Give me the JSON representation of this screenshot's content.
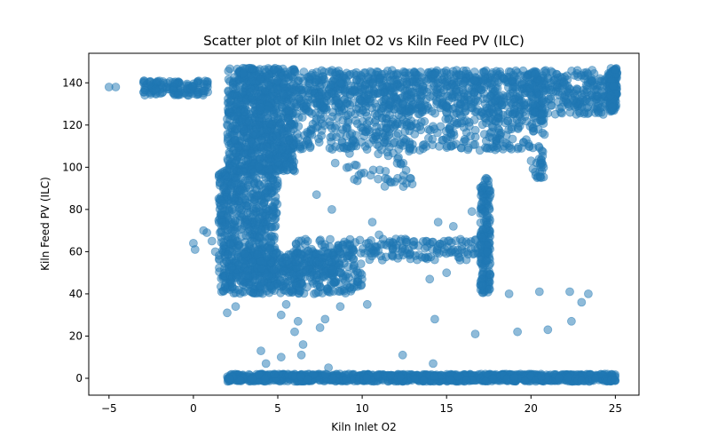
{
  "chart_data": {
    "type": "scatter",
    "title": "Scatter plot of Kiln Inlet O2 vs Kiln Feed PV (ILC)",
    "xlabel": "Kiln Inlet O2",
    "ylabel": "Kiln Feed PV (ILC)",
    "xlim": [
      -6.2,
      26.4
    ],
    "ylim": [
      -8,
      154
    ],
    "xticks": [
      -5,
      0,
      5,
      10,
      15,
      20,
      25
    ],
    "yticks": [
      0,
      20,
      40,
      60,
      80,
      100,
      120,
      140
    ],
    "grid": false,
    "legend": "none",
    "marker_color": "#1f77b4",
    "marker_alpha": 0.5,
    "regions": [
      {
        "x": [
          2.0,
          6.0
        ],
        "y": [
          98,
          147
        ],
        "n": 900
      },
      {
        "x": [
          1.5,
          5.0
        ],
        "y": [
          40,
          100
        ],
        "n": 700
      },
      {
        "x": [
          6.0,
          25.0
        ],
        "y": [
          125,
          146
        ],
        "n": 1100
      },
      {
        "x": [
          6.0,
          20.0
        ],
        "y": [
          108,
          125
        ],
        "n": 300
      },
      {
        "x": [
          6.0,
          17.5
        ],
        "y": [
          56,
          66
        ],
        "n": 220
      },
      {
        "x": [
          5.0,
          10.0
        ],
        "y": [
          40,
          55
        ],
        "n": 180
      },
      {
        "x": [
          17.0,
          17.6
        ],
        "y": [
          40,
          95
        ],
        "n": 180
      },
      {
        "x": [
          20.0,
          20.8
        ],
        "y": [
          95,
          145
        ],
        "n": 80
      },
      {
        "x": [
          24.6,
          25.1
        ],
        "y": [
          126,
          147
        ],
        "n": 120
      },
      {
        "x": [
          -3.0,
          0.9
        ],
        "y": [
          134,
          141
        ],
        "n": 140
      },
      {
        "x": [
          2.0,
          25.0
        ],
        "y": [
          -1.5,
          2.0
        ],
        "n": 1300
      },
      {
        "x": [
          9.0,
          13.0
        ],
        "y": [
          90,
          130
        ],
        "n": 80
      },
      {
        "x": [
          2.0,
          8.5
        ],
        "y": [
          48,
          60
        ],
        "n": 200
      }
    ],
    "points": [
      [
        -5.0,
        138
      ],
      [
        -4.6,
        138
      ],
      [
        0.0,
        64
      ],
      [
        0.1,
        61
      ],
      [
        0.6,
        70
      ],
      [
        0.8,
        69
      ],
      [
        1.1,
        65
      ],
      [
        1.3,
        60
      ],
      [
        2.0,
        31
      ],
      [
        2.5,
        34
      ],
      [
        4.0,
        13
      ],
      [
        4.3,
        7
      ],
      [
        4.8,
        2
      ],
      [
        5.2,
        10
      ],
      [
        5.2,
        30
      ],
      [
        5.5,
        35
      ],
      [
        6.0,
        22
      ],
      [
        6.4,
        11
      ],
      [
        6.5,
        16
      ],
      [
        6.2,
        27
      ],
      [
        7.5,
        24
      ],
      [
        7.8,
        28
      ],
      [
        8.0,
        5
      ],
      [
        8.7,
        34
      ],
      [
        8.0,
        41
      ],
      [
        9.2,
        2
      ],
      [
        10.3,
        35
      ],
      [
        12.4,
        11
      ],
      [
        14.2,
        7
      ],
      [
        14.3,
        28
      ],
      [
        16.7,
        21
      ],
      [
        18.7,
        40
      ],
      [
        19.2,
        22
      ],
      [
        20.5,
        41
      ],
      [
        21.0,
        23
      ],
      [
        22.3,
        41
      ],
      [
        22.4,
        27
      ],
      [
        23.4,
        40
      ],
      [
        23.0,
        36
      ],
      [
        20.6,
        100
      ],
      [
        20.6,
        95
      ],
      [
        19.9,
        110
      ],
      [
        14.5,
        74
      ],
      [
        15.4,
        72
      ],
      [
        16.5,
        79
      ],
      [
        12.0,
        66
      ],
      [
        14.0,
        47
      ],
      [
        15.0,
        50
      ],
      [
        15.8,
        56
      ],
      [
        10.6,
        74
      ],
      [
        11.0,
        68
      ],
      [
        8.2,
        80
      ],
      [
        8.4,
        102
      ],
      [
        7.3,
        87
      ]
    ]
  }
}
